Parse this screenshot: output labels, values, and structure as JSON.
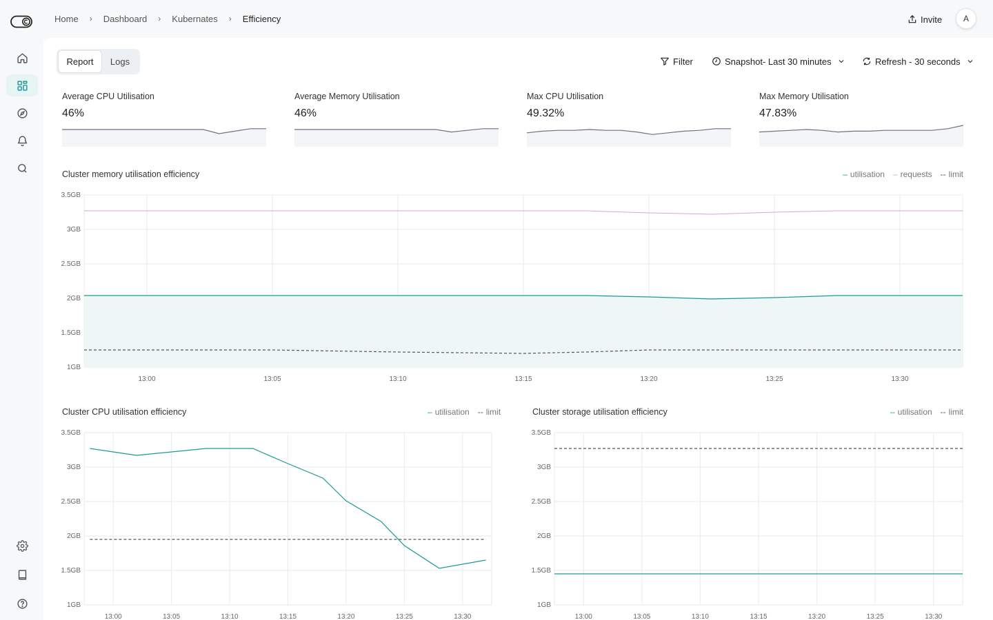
{
  "breadcrumb": [
    "Home",
    "Dashboard",
    "Kubernates",
    "Efficiency"
  ],
  "header": {
    "invite_label": "Invite",
    "avatar_initial": "A"
  },
  "sidebar": {
    "items": [
      "home-icon",
      "dashboard-icon",
      "compass-icon",
      "bell-icon",
      "search-icon"
    ],
    "bottom_items": [
      "gear-icon",
      "book-icon",
      "help-icon"
    ],
    "active": "dashboard-icon"
  },
  "tabs": [
    {
      "label": "Report",
      "active": true
    },
    {
      "label": "Logs",
      "active": false
    }
  ],
  "controls": {
    "filter_label": "Filter",
    "snapshot_label": "Snapshot- Last 30 minutes",
    "refresh_label": "Refresh - 30 seconds"
  },
  "kpis": [
    {
      "label": "Average CPU Utilisation",
      "value": "46%",
      "trend": [
        0,
        0,
        0,
        0,
        0,
        0,
        0,
        0,
        0,
        0,
        -5,
        -2,
        1,
        1
      ]
    },
    {
      "label": "Average Memory Utilisation",
      "value": "46%",
      "trend": [
        0,
        0,
        0,
        0,
        0,
        0,
        0,
        0,
        0,
        0,
        -3,
        -1,
        1,
        1
      ]
    },
    {
      "label": "Max CPU Utilisation",
      "value": "49.32%",
      "trend": [
        -4,
        -2,
        -1,
        -1,
        0,
        -1,
        -1,
        -3,
        -6,
        -4,
        -2,
        -1,
        1,
        1
      ]
    },
    {
      "label": "Max Memory Utilisation",
      "value": "47.83%",
      "trend": [
        -3,
        -2,
        -1,
        0,
        -1,
        -3,
        -2,
        -2,
        -1,
        -1,
        -1,
        -1,
        1,
        5
      ]
    }
  ],
  "colors": {
    "utilisation": "#1a9a94",
    "requests": "#d9a2d8",
    "limit": "#555555",
    "grid": "#e8eaed",
    "fill": "#eef7f6"
  },
  "chart_data": [
    {
      "type": "line",
      "title": "Cluster memory utilisation efficiency",
      "x": [
        "12:57:30",
        "13:00",
        "13:05",
        "13:10",
        "13:15",
        "13:17:30",
        "13:20",
        "13:22:30",
        "13:25",
        "13:27:30",
        "13:32:30"
      ],
      "x_ticks": [
        "13:00",
        "13:05",
        "13:10",
        "13:15",
        "13:20",
        "13:25",
        "13:30"
      ],
      "y_ticks": [
        "1GB",
        "1.5GB",
        "2GB",
        "2.5GB",
        "3GB",
        "3.5GB"
      ],
      "ylim": [
        1,
        3.5
      ],
      "series": [
        {
          "name": "utilisation",
          "values": [
            2.04,
            2.04,
            2.04,
            2.04,
            2.04,
            2.04,
            2.02,
            1.99,
            2.01,
            2.04,
            2.04
          ]
        },
        {
          "name": "requests",
          "values": [
            3.27,
            3.27,
            3.27,
            3.27,
            3.27,
            3.27,
            3.24,
            3.22,
            3.25,
            3.27,
            3.27
          ]
        },
        {
          "name": "limit",
          "values": [
            1.25,
            1.25,
            1.25,
            1.22,
            1.2,
            1.22,
            1.25,
            1.25,
            1.25,
            1.25,
            1.25
          ]
        }
      ],
      "grid": true,
      "legend": "top-right"
    },
    {
      "type": "line",
      "title": "Cluster CPU utilisation efficiency",
      "x": [
        "12:58",
        "13:00",
        "13:02",
        "13:05",
        "13:08",
        "13:10",
        "13:12",
        "13:15",
        "13:18",
        "13:20",
        "13:23",
        "13:25",
        "13:28",
        "13:30",
        "13:32"
      ],
      "x_ticks": [
        "13:00",
        "13:05",
        "13:10",
        "13:15",
        "13:20",
        "13:25",
        "13:30"
      ],
      "y_ticks": [
        "1GB",
        "1.5GB",
        "2GB",
        "2.5GB",
        "3GB",
        "3.5GB"
      ],
      "ylim": [
        1,
        3.5
      ],
      "series": [
        {
          "name": "utilisation",
          "values": [
            3.27,
            3.22,
            3.17,
            3.22,
            3.27,
            3.27,
            3.27,
            3.05,
            2.84,
            2.51,
            2.21,
            1.86,
            1.53,
            1.59,
            1.65
          ]
        },
        {
          "name": "limit",
          "values": [
            1.95,
            1.95,
            1.95,
            1.95,
            1.95,
            1.95,
            1.95,
            1.95,
            1.95,
            1.95,
            1.95,
            1.95,
            1.95,
            1.95,
            1.95
          ]
        }
      ],
      "grid": true,
      "legend": "top-right"
    },
    {
      "type": "line",
      "title": "Cluster storage utilisation efficiency",
      "x": [
        "12:58",
        "13:32"
      ],
      "x_ticks": [
        "13:00",
        "13:05",
        "13:10",
        "13:15",
        "13:20",
        "13:25",
        "13:30"
      ],
      "y_ticks": [
        "1GB",
        "1.5GB",
        "2GB",
        "2.5GB",
        "3GB",
        "3.5GB"
      ],
      "ylim": [
        1,
        3.5
      ],
      "series": [
        {
          "name": "utilisation",
          "values": [
            1.45,
            1.45
          ]
        },
        {
          "name": "limit",
          "values": [
            3.27,
            3.27
          ]
        }
      ],
      "grid": true,
      "legend": "top-right"
    }
  ]
}
